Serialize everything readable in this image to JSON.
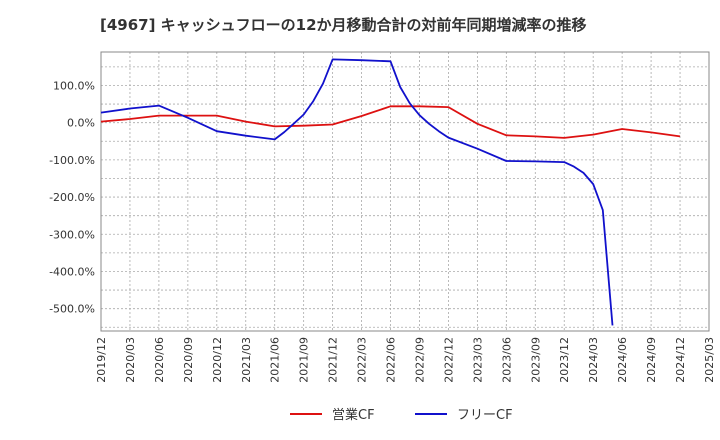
{
  "chart_data": {
    "type": "line",
    "title": "[4967]  キャッシュフローの12か月移動合計の対前年同期増減率の推移",
    "xlabel": "",
    "ylabel": "",
    "ylim": [
      -560,
      190
    ],
    "yticks": [
      100,
      0,
      -100,
      -200,
      -300,
      -400,
      -500
    ],
    "ytick_labels": [
      "100.0%",
      "0.0%",
      "-100.0%",
      "-200.0%",
      "-300.0%",
      "-400.0%",
      "-500.0%"
    ],
    "xticks": [
      "2019/12",
      "2020/03",
      "2020/06",
      "2020/09",
      "2020/12",
      "2021/03",
      "2021/06",
      "2021/09",
      "2021/12",
      "2022/03",
      "2022/06",
      "2022/09",
      "2022/12",
      "2023/03",
      "2023/06",
      "2023/09",
      "2023/12",
      "2024/03",
      "2024/06",
      "2024/09",
      "2024/12",
      "2025/03"
    ],
    "grid": true,
    "legend_position": "bottom",
    "series": [
      {
        "name": "営業CF",
        "color": "#dd1111",
        "points": [
          [
            "2019/12",
            3
          ],
          [
            "2020/03",
            10
          ],
          [
            "2020/06",
            19
          ],
          [
            "2020/09",
            19
          ],
          [
            "2020/12",
            19
          ],
          [
            "2021/03",
            3
          ],
          [
            "2021/06",
            -10
          ],
          [
            "2021/09",
            -8
          ],
          [
            "2021/12",
            -5
          ],
          [
            "2022/03",
            18
          ],
          [
            "2022/06",
            44
          ],
          [
            "2022/09",
            44
          ],
          [
            "2022/12",
            42
          ],
          [
            "2023/03",
            -3
          ],
          [
            "2023/06",
            -34
          ],
          [
            "2023/09",
            -37
          ],
          [
            "2023/12",
            -41
          ],
          [
            "2024/03",
            -32
          ],
          [
            "2024/06",
            -17
          ],
          [
            "2024/09",
            -26
          ],
          [
            "2024/12",
            -37
          ]
        ]
      },
      {
        "name": "フリーCF",
        "color": "#1111cc",
        "points": [
          [
            "2019/12",
            27
          ],
          [
            "2020/03",
            38
          ],
          [
            "2020/06",
            46
          ],
          [
            "2020/09",
            13
          ],
          [
            "2020/12",
            -23
          ],
          [
            "2021/03",
            -35
          ],
          [
            "2021/06",
            -45
          ],
          [
            "2021/07",
            -25
          ],
          [
            "2021/08",
            -2
          ],
          [
            "2021/09",
            22
          ],
          [
            "2021/10",
            58
          ],
          [
            "2021/11",
            105
          ],
          [
            "2021/12",
            170
          ],
          [
            "2022/03",
            168
          ],
          [
            "2022/06",
            165
          ],
          [
            "2022/07",
            96
          ],
          [
            "2022/08",
            52
          ],
          [
            "2022/09",
            20
          ],
          [
            "2022/10",
            -3
          ],
          [
            "2022/11",
            -23
          ],
          [
            "2022/12",
            -40
          ],
          [
            "2023/03",
            -70
          ],
          [
            "2023/06",
            -103
          ],
          [
            "2023/09",
            -104
          ],
          [
            "2023/12",
            -106
          ],
          [
            "2024/01",
            -118
          ],
          [
            "2024/02",
            -135
          ],
          [
            "2024/03",
            -165
          ],
          [
            "2024/04",
            -235
          ],
          [
            "2024/05",
            -545
          ]
        ]
      }
    ]
  }
}
